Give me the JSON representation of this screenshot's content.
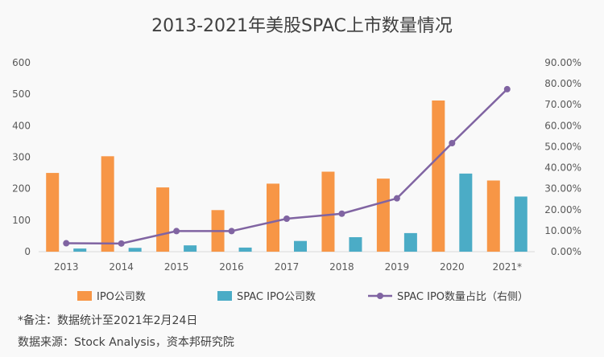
{
  "chart_data": {
    "type": "bar",
    "title": "2013-2021年美股SPAC上市数量情况",
    "categories": [
      "2013",
      "2014",
      "2015",
      "2016",
      "2017",
      "2018",
      "2019",
      "2020",
      "2021*"
    ],
    "series": [
      {
        "name": "IPO公司数",
        "type": "bar",
        "axis": "left",
        "color": "#F79646",
        "values": [
          250,
          303,
          204,
          132,
          216,
          254,
          232,
          480,
          226
        ]
      },
      {
        "name": "SPAC IPO公司数",
        "type": "bar",
        "axis": "left",
        "color": "#4BACC6",
        "values": [
          10,
          12,
          20,
          13,
          34,
          46,
          59,
          248,
          175
        ]
      },
      {
        "name": "SPAC IPO数量占比（右侧）",
        "type": "line",
        "axis": "right",
        "color": "#8064A2",
        "values": [
          4.0,
          3.9,
          9.8,
          9.8,
          15.7,
          18.1,
          25.4,
          51.7,
          77.4
        ]
      }
    ],
    "y_left": {
      "min": 0,
      "max": 600,
      "ticks": [
        "0",
        "100",
        "200",
        "300",
        "400",
        "500",
        "600"
      ]
    },
    "y_right": {
      "min": 0,
      "max": 90,
      "ticks": [
        "0.00%",
        "10.00%",
        "20.00%",
        "30.00%",
        "40.00%",
        "50.00%",
        "60.00%",
        "70.00%",
        "80.00%",
        "90.00%"
      ]
    },
    "grid": false,
    "legend_position": "bottom"
  },
  "notes": {
    "line1": "*备注：数据统计至2021年2月24日",
    "line2": "数据来源：Stock Analysis，资本邦研究院"
  }
}
